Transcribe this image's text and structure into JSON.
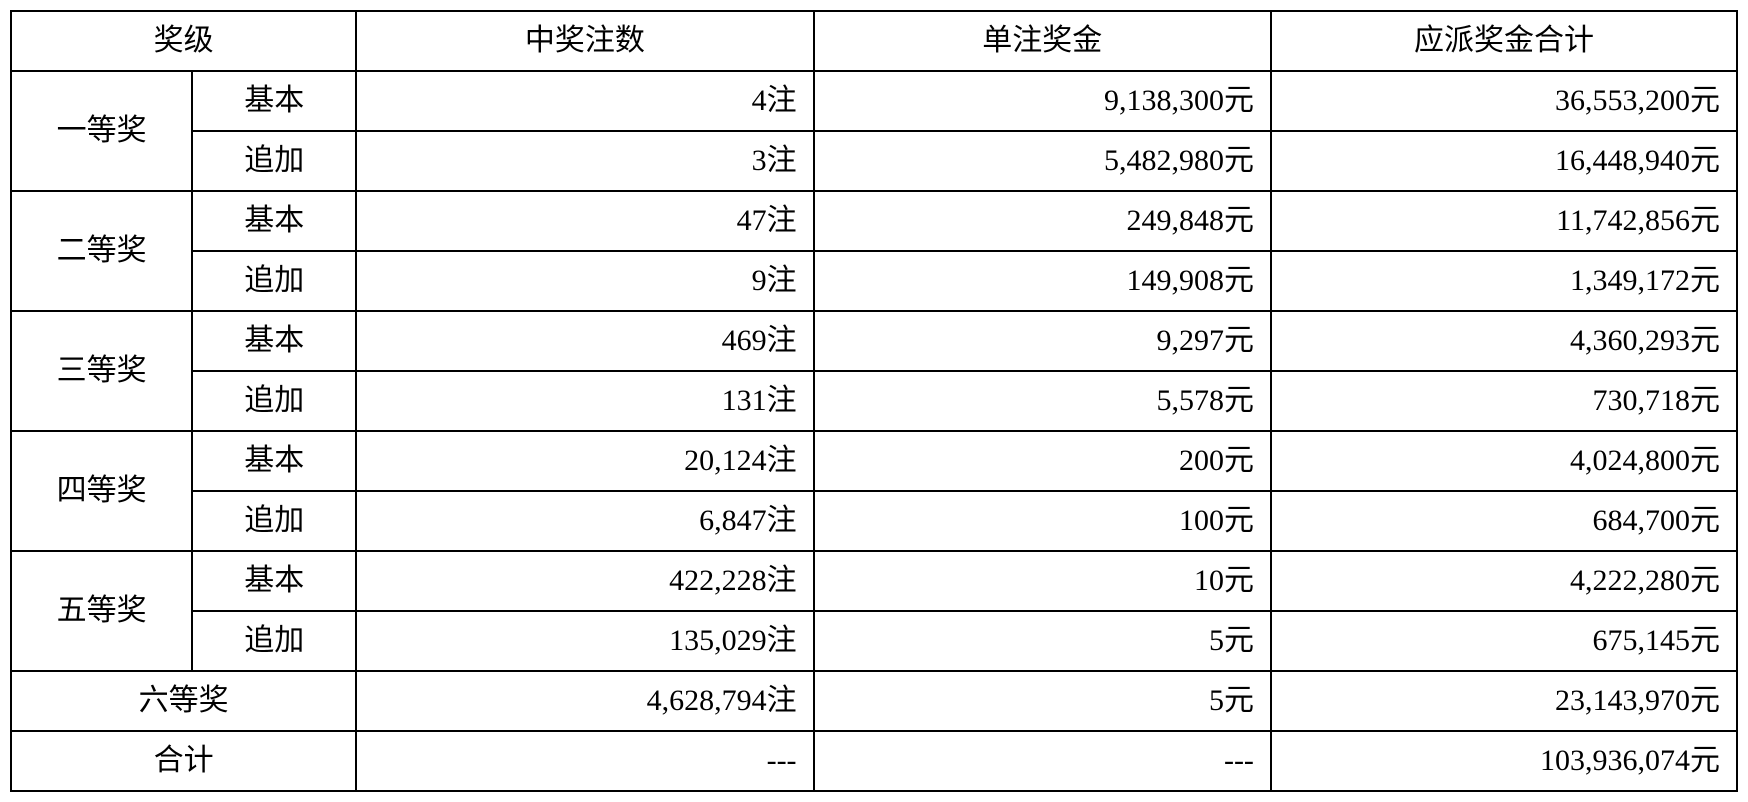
{
  "table": {
    "headers": {
      "level": "奖级",
      "count": "中奖注数",
      "unit_prize": "单注奖金",
      "total_prize": "应派奖金合计"
    },
    "subtypes": {
      "basic": "基本",
      "additional": "追加"
    },
    "levels": {
      "first": "一等奖",
      "second": "二等奖",
      "third": "三等奖",
      "fourth": "四等奖",
      "fifth": "五等奖",
      "sixth": "六等奖"
    },
    "rows": {
      "first_basic": {
        "count": "4注",
        "unit": "9,138,300元",
        "total": "36,553,200元"
      },
      "first_add": {
        "count": "3注",
        "unit": "5,482,980元",
        "total": "16,448,940元"
      },
      "second_basic": {
        "count": "47注",
        "unit": "249,848元",
        "total": "11,742,856元"
      },
      "second_add": {
        "count": "9注",
        "unit": "149,908元",
        "total": "1,349,172元"
      },
      "third_basic": {
        "count": "469注",
        "unit": "9,297元",
        "total": "4,360,293元"
      },
      "third_add": {
        "count": "131注",
        "unit": "5,578元",
        "total": "730,718元"
      },
      "fourth_basic": {
        "count": "20,124注",
        "unit": "200元",
        "total": "4,024,800元"
      },
      "fourth_add": {
        "count": "6,847注",
        "unit": "100元",
        "total": "684,700元"
      },
      "fifth_basic": {
        "count": "422,228注",
        "unit": "10元",
        "total": "4,222,280元"
      },
      "fifth_add": {
        "count": "135,029注",
        "unit": "5元",
        "total": "675,145元"
      },
      "sixth": {
        "count": "4,628,794注",
        "unit": "5元",
        "total": "23,143,970元"
      }
    },
    "summary": {
      "label": "合计",
      "count": "---",
      "unit": "---",
      "total": "103,936,074元"
    },
    "styling": {
      "border_color": "#000000",
      "border_width": 2,
      "background_color": "#ffffff",
      "text_color": "#000000",
      "font_size": 30,
      "font_family": "SimSun"
    }
  }
}
